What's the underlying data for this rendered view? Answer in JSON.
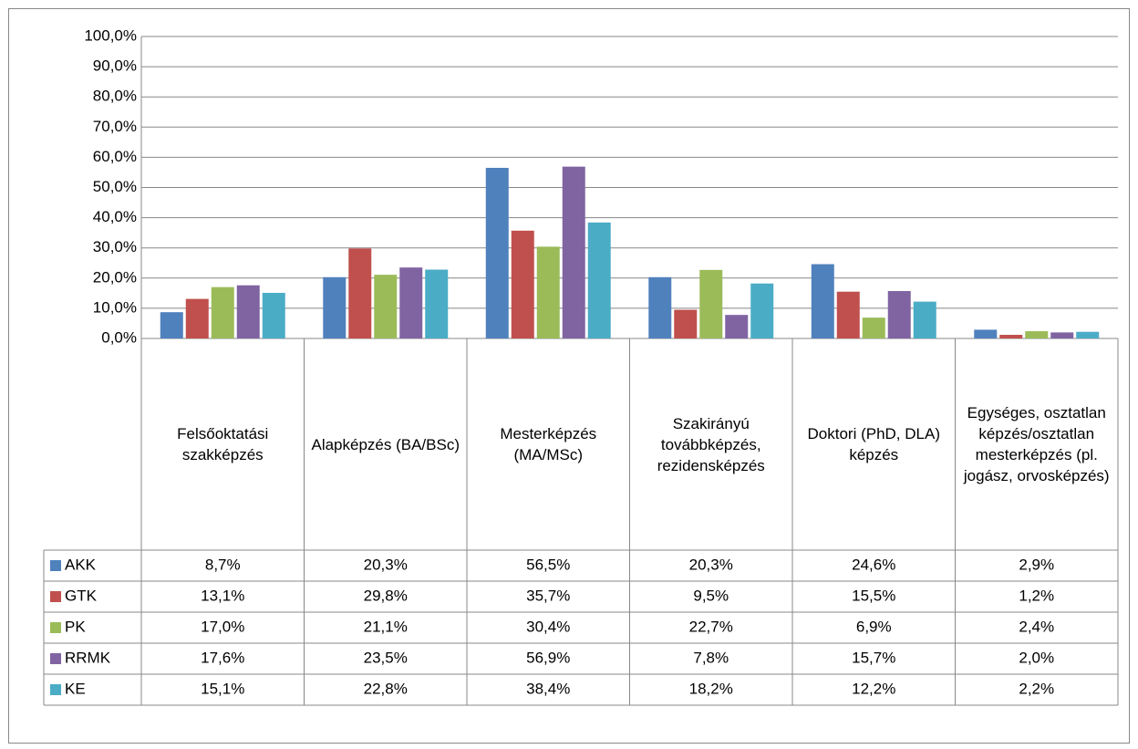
{
  "chart_data": {
    "type": "bar",
    "categories": [
      "Felsőoktatási szakképzés",
      "Alapképzés (BA/BSc)",
      "Mesterképzés (MA/MSc)",
      "Szakirányú továbbképzés, rezidensképzés",
      "Doktori (PhD, DLA) képzés",
      "Egységes, osztatlan képzés/osztatlan mesterképzés (pl. jogász, orvosképzés)"
    ],
    "series": [
      {
        "name": "AKK",
        "color": "#4f81bd",
        "values": [
          8.7,
          20.3,
          56.5,
          20.3,
          24.6,
          2.9
        ],
        "value_labels": [
          "8,7%",
          "20,3%",
          "56,5%",
          "20,3%",
          "24,6%",
          "2,9%"
        ]
      },
      {
        "name": "GTK",
        "color": "#c0504d",
        "values": [
          13.1,
          29.8,
          35.7,
          9.5,
          15.5,
          1.2
        ],
        "value_labels": [
          "13,1%",
          "29,8%",
          "35,7%",
          "9,5%",
          "15,5%",
          "1,2%"
        ]
      },
      {
        "name": "PK",
        "color": "#9bbb59",
        "values": [
          17.0,
          21.1,
          30.4,
          22.7,
          6.9,
          2.4
        ],
        "value_labels": [
          "17,0%",
          "21,1%",
          "30,4%",
          "22,7%",
          "6,9%",
          "2,4%"
        ]
      },
      {
        "name": "RRMK",
        "color": "#8064a2",
        "values": [
          17.6,
          23.5,
          56.9,
          7.8,
          15.7,
          2.0
        ],
        "value_labels": [
          "17,6%",
          "23,5%",
          "56,9%",
          "7,8%",
          "15,7%",
          "2,0%"
        ]
      },
      {
        "name": "KE",
        "color": "#4bacc6",
        "values": [
          15.1,
          22.8,
          38.4,
          18.2,
          12.2,
          2.2
        ],
        "value_labels": [
          "15,1%",
          "22,8%",
          "38,4%",
          "18,2%",
          "12,2%",
          "2,2%"
        ]
      }
    ],
    "ylim": [
      0,
      100
    ],
    "yticks": [
      {
        "value": 0,
        "label": "0,0%"
      },
      {
        "value": 10,
        "label": "10,0%"
      },
      {
        "value": 20,
        "label": "20,0%"
      },
      {
        "value": 30,
        "label": "30,0%"
      },
      {
        "value": 40,
        "label": "40,0%"
      },
      {
        "value": 50,
        "label": "50,0%"
      },
      {
        "value": 60,
        "label": "60,0%"
      },
      {
        "value": 70,
        "label": "70,0%"
      },
      {
        "value": 80,
        "label": "80,0%"
      },
      {
        "value": 90,
        "label": "90,0%"
      },
      {
        "value": 100,
        "label": "100,0%"
      }
    ],
    "grid": true
  }
}
